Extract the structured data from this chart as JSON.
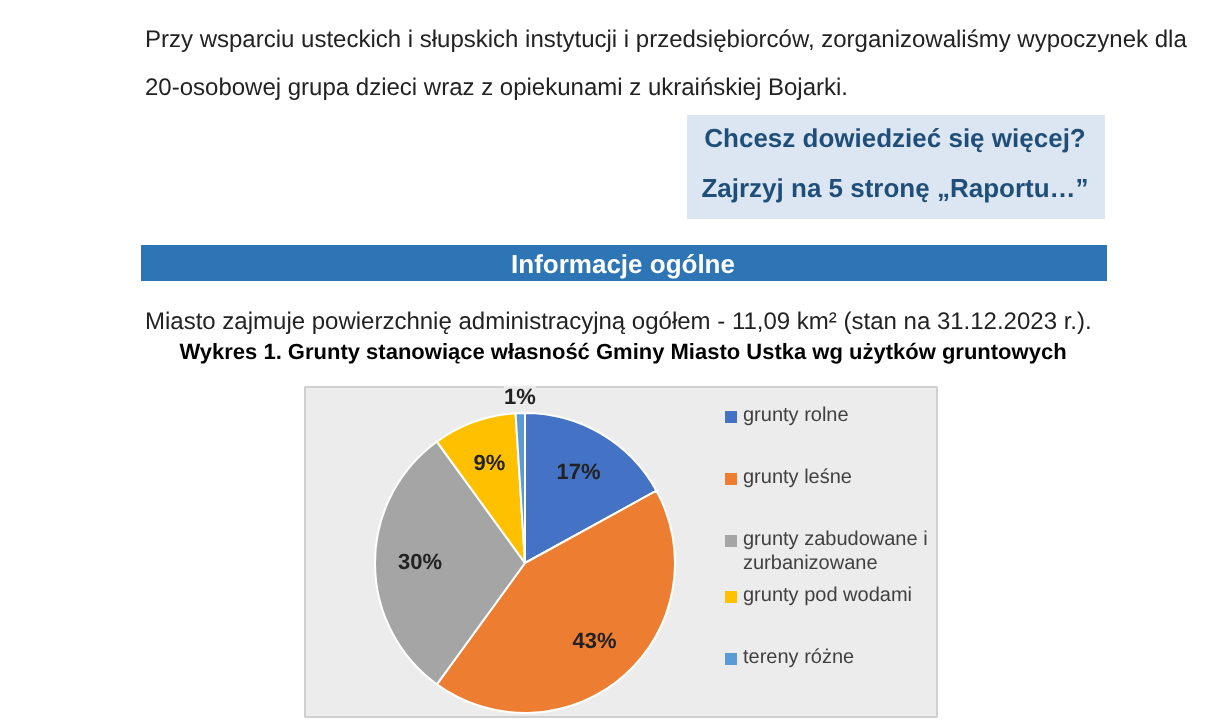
{
  "chart_data": {
    "type": "pie",
    "title": "Wykres 1. Grunty stanowiące własność Gminy Miasto Ustka wg użytków gruntowych",
    "annotations": [
      "Przy wsparciu usteckich i słupskich instytucji i przedsiębiorców, zorganizowaliśmy wypoczynek dla",
      "20-osobowej grupa dzieci wraz z opiekunami z ukraińskiej Bojarki.",
      "Chcesz dowiedzieć się więcej?",
      "Zajrzyj na 5 stronę „Raportu…”",
      "Informacje ogólne",
      "Miasto zajmuje powierzchnię administracyjną ogółem - 11,09 km² (stan na 31.12.2023 r.)."
    ],
    "categories": [
      "grunty rolne",
      "grunty leśne",
      "grunty zabudowane i zurbanizowane",
      "grunty pod wodami",
      "tereny różne"
    ],
    "values": [
      17,
      43,
      30,
      9,
      1
    ],
    "colors": [
      "#4472c4",
      "#ed7d31",
      "#a5a5a5",
      "#ffc000",
      "#5b9bd5"
    ],
    "value_labels": [
      "17%",
      "43%",
      "30%",
      "9%",
      "1%"
    ],
    "legend": "right"
  }
}
